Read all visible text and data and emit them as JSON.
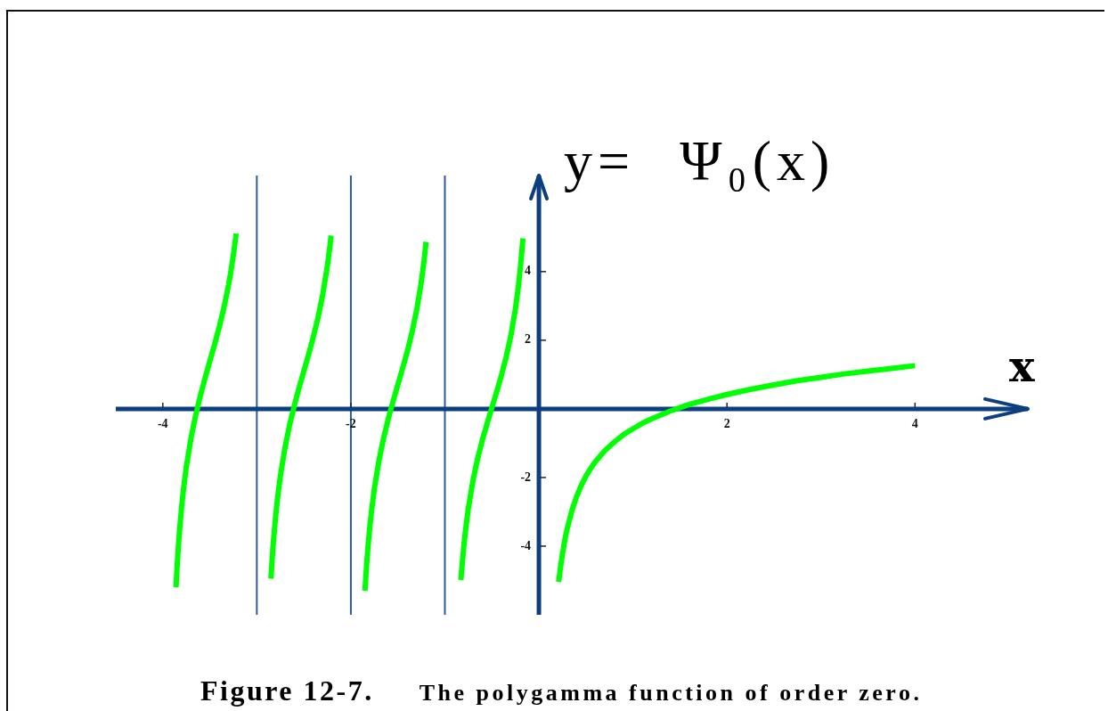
{
  "chart_data": {
    "type": "line",
    "title": "Figure 12-7.",
    "subtitle": "The polygamma function of order zero.",
    "xlabel": "x",
    "ylabel": "y= Ψ₀(x)",
    "xlim": [
      -4.5,
      5.2
    ],
    "ylim": [
      -6,
      6.8
    ],
    "xticks": [
      -4,
      -2,
      2,
      4
    ],
    "yticks": [
      -4,
      -2,
      2,
      4
    ],
    "line_style": "solid",
    "series": [
      {
        "color": "#00ff00",
        "x": [
          -3.86,
          -3.85,
          -3.84,
          -3.83,
          -3.82,
          -3.8,
          -3.78,
          -3.75,
          -3.7,
          -3.65,
          -3.6,
          -3.55,
          -3.5,
          -3.45,
          -3.4,
          -3.35,
          -3.3,
          -3.28,
          -3.25,
          -3.23,
          -3.22
        ],
        "values": [
          -5.2,
          -4.69,
          -4.25,
          -3.83,
          -3.49,
          -2.86,
          -2.34,
          -1.69,
          -0.85,
          -0.18,
          0.39,
          0.9,
          1.39,
          1.87,
          2.38,
          2.95,
          3.62,
          3.93,
          4.47,
          4.88,
          5.11
        ]
      },
      {
        "color": "#00ff00",
        "x": [
          -2.85,
          -2.84,
          -2.83,
          -2.82,
          -2.8,
          -2.78,
          -2.75,
          -2.7,
          -2.65,
          -2.6,
          -2.55,
          -2.5,
          -2.45,
          -2.4,
          -2.35,
          -2.3,
          -2.25,
          -2.22,
          -2.21
        ],
        "values": [
          -4.95,
          -4.51,
          -4.09,
          -3.75,
          -3.13,
          -2.61,
          -1.96,
          -1.12,
          -0.45,
          0.11,
          0.62,
          1.1,
          1.58,
          2.09,
          2.65,
          3.32,
          4.16,
          4.8,
          5.05
        ]
      },
      {
        "color": "#00ff00",
        "x": [
          -1.85,
          -1.84,
          -1.83,
          -1.82,
          -1.8,
          -1.78,
          -1.75,
          -1.7,
          -1.65,
          -1.6,
          -1.55,
          -1.5,
          -1.45,
          -1.4,
          -1.35,
          -1.3,
          -1.25,
          -1.22,
          -1.2
        ],
        "values": [
          -5.3,
          -4.86,
          -4.45,
          -4.1,
          -3.48,
          -2.97,
          -2.32,
          -1.49,
          -0.83,
          -0.27,
          0.23,
          0.7,
          1.18,
          1.67,
          2.23,
          2.88,
          3.71,
          4.35,
          4.87
        ]
      },
      {
        "color": "#00ff00",
        "x": [
          -0.83,
          -0.82,
          -0.8,
          -0.78,
          -0.75,
          -0.7,
          -0.65,
          -0.6,
          -0.55,
          -0.5,
          -0.45,
          -0.4,
          -0.35,
          -0.3,
          -0.25,
          -0.22,
          -0.2,
          -0.18,
          -0.17
        ],
        "values": [
          -4.99,
          -4.65,
          -4.04,
          -3.53,
          -2.89,
          -2.07,
          -1.43,
          -0.89,
          -0.42,
          0.04,
          0.49,
          0.96,
          1.49,
          2.11,
          2.91,
          3.53,
          4.04,
          4.64,
          4.97
        ]
      },
      {
        "color": "#00ff00",
        "x": [
          0.21,
          0.23,
          0.25,
          0.28,
          0.3,
          0.35,
          0.4,
          0.45,
          0.5,
          0.55,
          0.6,
          0.7,
          0.8,
          0.9,
          1,
          1.1,
          1.2,
          1.4,
          1.6,
          1.8,
          2,
          2.25,
          2.5,
          2.75,
          3,
          3.25,
          3.5,
          3.75,
          4
        ],
        "values": [
          -5.04,
          -4.6,
          -4.23,
          -3.76,
          -3.5,
          -2.97,
          -2.56,
          -2.23,
          -1.96,
          -1.74,
          -1.54,
          -1.22,
          -0.97,
          -0.75,
          -0.58,
          -0.42,
          -0.29,
          -0.06,
          0.13,
          0.28,
          0.42,
          0.57,
          0.7,
          0.82,
          0.92,
          1.02,
          1.1,
          1.18,
          1.26
        ]
      }
    ],
    "ref_lines": [
      {
        "axis": "x",
        "value": -3,
        "color": "#2c5d99"
      },
      {
        "axis": "x",
        "value": -2,
        "color": "#2c5d99"
      },
      {
        "axis": "x",
        "value": -1,
        "color": "#2c5d99"
      }
    ]
  }
}
